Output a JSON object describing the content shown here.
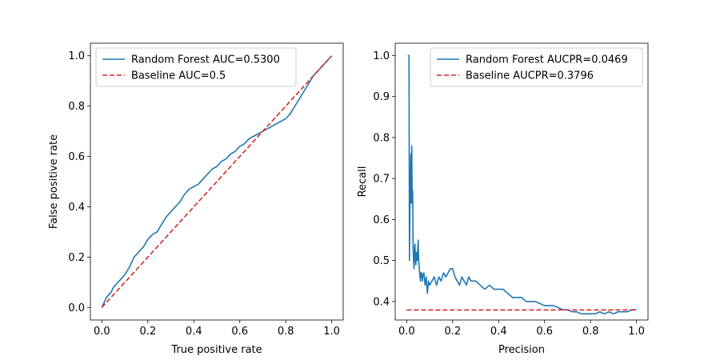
{
  "chart_data": [
    {
      "type": "line",
      "xlabel": "True positive rate",
      "ylabel": "False positive rate",
      "xlim": [
        -0.05,
        1.05
      ],
      "ylim": [
        -0.05,
        1.05
      ],
      "xticks": [
        "0.0",
        "0.2",
        "0.4",
        "0.6",
        "0.8",
        "1.0"
      ],
      "yticks": [
        "0.0",
        "0.2",
        "0.4",
        "0.6",
        "0.8",
        "1.0"
      ],
      "legend_position": "top-left",
      "series": [
        {
          "name": "Random Forest AUC=0.5300",
          "color": "#1f77b4",
          "dash": "solid",
          "x": [
            0.0,
            0.01,
            0.02,
            0.03,
            0.04,
            0.05,
            0.07,
            0.09,
            0.1,
            0.12,
            0.13,
            0.14,
            0.16,
            0.18,
            0.2,
            0.22,
            0.24,
            0.26,
            0.28,
            0.3,
            0.32,
            0.34,
            0.36,
            0.38,
            0.4,
            0.42,
            0.44,
            0.46,
            0.48,
            0.5,
            0.52,
            0.54,
            0.56,
            0.58,
            0.6,
            0.62,
            0.64,
            0.66,
            0.68,
            0.7,
            0.72,
            0.74,
            0.76,
            0.78,
            0.8,
            0.82,
            0.84,
            0.86,
            0.88,
            0.9,
            0.92,
            0.94,
            0.96,
            0.98,
            1.0
          ],
          "y": [
            0.0,
            0.02,
            0.04,
            0.05,
            0.06,
            0.08,
            0.1,
            0.12,
            0.13,
            0.16,
            0.18,
            0.2,
            0.22,
            0.24,
            0.27,
            0.29,
            0.3,
            0.33,
            0.36,
            0.38,
            0.4,
            0.42,
            0.45,
            0.47,
            0.48,
            0.49,
            0.51,
            0.53,
            0.55,
            0.56,
            0.58,
            0.59,
            0.61,
            0.62,
            0.64,
            0.65,
            0.67,
            0.68,
            0.69,
            0.7,
            0.71,
            0.72,
            0.73,
            0.74,
            0.75,
            0.77,
            0.8,
            0.83,
            0.86,
            0.89,
            0.92,
            0.94,
            0.96,
            0.98,
            1.0
          ]
        },
        {
          "name": "Baseline AUC=0.5",
          "color": "#d62728",
          "dash": "dashed",
          "x": [
            0.0,
            1.0
          ],
          "y": [
            0.0,
            1.0
          ]
        }
      ]
    },
    {
      "type": "line",
      "xlabel": "Precision",
      "ylabel": "Recall",
      "xlim": [
        -0.05,
        1.05
      ],
      "ylim": [
        0.355,
        1.03
      ],
      "xticks": [
        "0.0",
        "0.2",
        "0.4",
        "0.6",
        "0.8",
        "1.0"
      ],
      "yticks": [
        "0.4",
        "0.5",
        "0.6",
        "0.7",
        "0.8",
        "0.9",
        "1.0"
      ],
      "legend_position": "top-right",
      "series": [
        {
          "name": "Random Forest AUCPR=0.0469",
          "color": "#1f77b4",
          "dash": "solid",
          "x": [
            0.005,
            0.008,
            0.01,
            0.012,
            0.014,
            0.016,
            0.018,
            0.02,
            0.022,
            0.024,
            0.026,
            0.028,
            0.03,
            0.032,
            0.034,
            0.036,
            0.038,
            0.04,
            0.042,
            0.044,
            0.046,
            0.048,
            0.05,
            0.052,
            0.054,
            0.056,
            0.058,
            0.06,
            0.062,
            0.064,
            0.066,
            0.068,
            0.07,
            0.075,
            0.08,
            0.085,
            0.09,
            0.095,
            0.1,
            0.11,
            0.12,
            0.13,
            0.14,
            0.15,
            0.16,
            0.17,
            0.18,
            0.19,
            0.2,
            0.21,
            0.22,
            0.23,
            0.24,
            0.25,
            0.26,
            0.27,
            0.28,
            0.3,
            0.32,
            0.34,
            0.36,
            0.38,
            0.4,
            0.42,
            0.44,
            0.46,
            0.48,
            0.5,
            0.52,
            0.54,
            0.56,
            0.58,
            0.6,
            0.62,
            0.64,
            0.66,
            0.68,
            0.7,
            0.72,
            0.74,
            0.76,
            0.78,
            0.8,
            0.82,
            0.84,
            0.86,
            0.88,
            0.9,
            0.92,
            0.94,
            0.96,
            0.98,
            1.0
          ],
          "y": [
            1.0,
            1.0,
            1.0,
            0.5,
            0.62,
            0.7,
            0.76,
            0.64,
            0.78,
            0.64,
            0.67,
            0.53,
            0.5,
            0.48,
            0.53,
            0.54,
            0.5,
            0.49,
            0.52,
            0.51,
            0.5,
            0.53,
            0.55,
            0.5,
            0.49,
            0.47,
            0.46,
            0.45,
            0.47,
            0.46,
            0.47,
            0.45,
            0.46,
            0.47,
            0.44,
            0.46,
            0.42,
            0.45,
            0.44,
            0.45,
            0.46,
            0.44,
            0.46,
            0.45,
            0.47,
            0.46,
            0.47,
            0.48,
            0.48,
            0.46,
            0.45,
            0.44,
            0.46,
            0.45,
            0.44,
            0.46,
            0.45,
            0.45,
            0.44,
            0.43,
            0.44,
            0.43,
            0.43,
            0.43,
            0.42,
            0.41,
            0.41,
            0.41,
            0.4,
            0.4,
            0.4,
            0.395,
            0.39,
            0.39,
            0.39,
            0.385,
            0.38,
            0.38,
            0.375,
            0.375,
            0.37,
            0.37,
            0.37,
            0.37,
            0.375,
            0.37,
            0.375,
            0.37,
            0.375,
            0.375,
            0.375,
            0.38,
            0.38
          ]
        },
        {
          "name": "Baseline AUCPR=0.3796",
          "color": "#d62728",
          "dash": "dashed",
          "x": [
            0.0,
            1.0
          ],
          "y": [
            0.3796,
            0.3796
          ]
        }
      ]
    }
  ]
}
